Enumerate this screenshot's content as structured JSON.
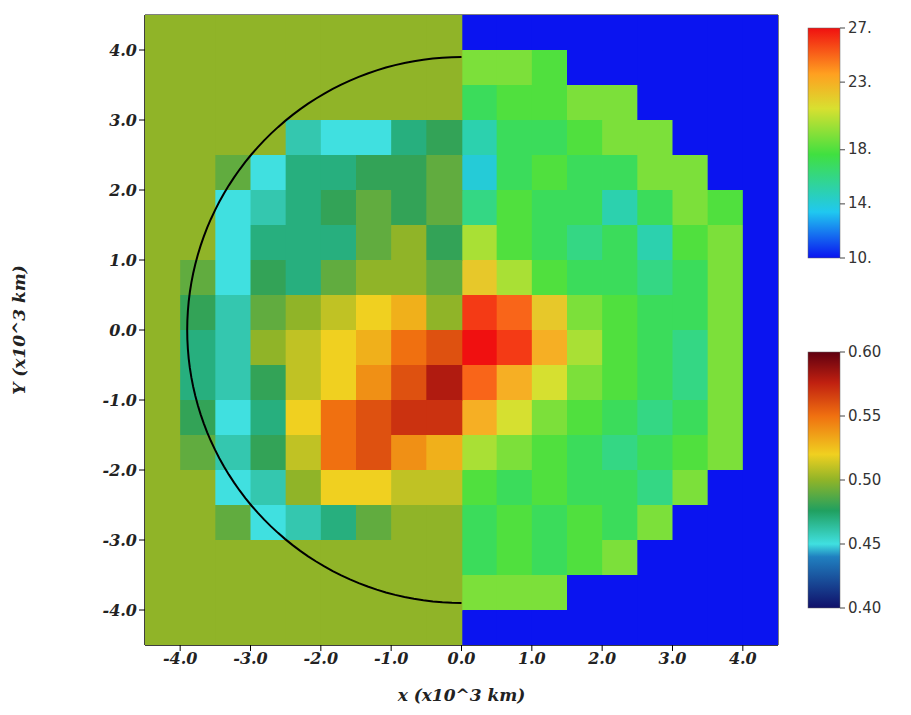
{
  "chart_data": {
    "type": "heatmap",
    "xlabel": "x (x10^3 km)",
    "ylabel": "Y (x10^3 km)",
    "xlim": [
      -4.5,
      4.5
    ],
    "ylim": [
      -4.5,
      4.5
    ],
    "xticks": [
      {
        "value": -4,
        "label": "-4.0"
      },
      {
        "value": -3,
        "label": "-3.0"
      },
      {
        "value": -2,
        "label": "-2.0"
      },
      {
        "value": -1,
        "label": "-1.0"
      },
      {
        "value": 0,
        "label": "0.0"
      },
      {
        "value": 1,
        "label": "1.0"
      },
      {
        "value": 2,
        "label": "2.0"
      },
      {
        "value": 3,
        "label": "3.0"
      },
      {
        "value": 4,
        "label": "4.0"
      }
    ],
    "yticks": [
      {
        "value": -4,
        "label": "-4.0"
      },
      {
        "value": -3,
        "label": "-3.0"
      },
      {
        "value": -2,
        "label": "-2.0"
      },
      {
        "value": -1,
        "label": "-1.0"
      },
      {
        "value": 0,
        "label": "0.0"
      },
      {
        "value": 1,
        "label": "1.0"
      },
      {
        "value": 2,
        "label": "2.0"
      },
      {
        "value": 3,
        "label": "3.0"
      },
      {
        "value": 4,
        "label": "4.0"
      }
    ],
    "heatmaps": [
      {
        "x": [
          0.25,
          0.75,
          1.25,
          1.75,
          2.25,
          2.75,
          3.25,
          3.75,
          4.25
        ],
        "y": [
          4.25,
          3.75,
          3.25,
          2.75,
          2.25,
          1.75,
          1.25,
          0.75,
          0.25,
          -0.25,
          -0.75,
          -1.25,
          -1.75,
          -2.25,
          -2.75,
          -3.25,
          -3.75,
          -4.25
        ],
        "values": [
          [
            10,
            10,
            10,
            10,
            10,
            10,
            10,
            10,
            10
          ],
          [
            19,
            19,
            18,
            10,
            10,
            10,
            10,
            10,
            10
          ],
          [
            17,
            18,
            18,
            19,
            19,
            10,
            10,
            10,
            10
          ],
          [
            15,
            17,
            17,
            18,
            19,
            19,
            10,
            10,
            10
          ],
          [
            14,
            17,
            18,
            17,
            17,
            19,
            19,
            10,
            10
          ],
          [
            16,
            18,
            17,
            17,
            15,
            17,
            19,
            18,
            10
          ],
          [
            20,
            18,
            17,
            16,
            17,
            15,
            18,
            19,
            10
          ],
          [
            22,
            20,
            18,
            17,
            17,
            16,
            17,
            19,
            10
          ],
          [
            26,
            25,
            22,
            19,
            18,
            17,
            17,
            19,
            10
          ],
          [
            27,
            26,
            23,
            20,
            18,
            17,
            16,
            19,
            10
          ],
          [
            25,
            23,
            21,
            19,
            18,
            17,
            16,
            19,
            10
          ],
          [
            23,
            21,
            19,
            18,
            17,
            16,
            17,
            19,
            10
          ],
          [
            20,
            19,
            18,
            17,
            16,
            17,
            18,
            19,
            10
          ],
          [
            18,
            17,
            18,
            17,
            17,
            16,
            19,
            10,
            10
          ],
          [
            17,
            18,
            17,
            18,
            17,
            19,
            10,
            10,
            10
          ],
          [
            17,
            18,
            17,
            18,
            19,
            10,
            10,
            10,
            10
          ],
          [
            19,
            19,
            19,
            10,
            10,
            10,
            10,
            10,
            10
          ],
          [
            10,
            10,
            10,
            10,
            10,
            10,
            10,
            10,
            10
          ]
        ],
        "colorbar": {
          "range": [
            10,
            27
          ],
          "ticks": [
            {
              "value": 27,
              "label": "27."
            },
            {
              "value": 23,
              "label": "23."
            },
            {
              "value": 18,
              "label": "18."
            },
            {
              "value": 14,
              "label": "14."
            },
            {
              "value": 10,
              "label": "10."
            }
          ]
        }
      },
      {
        "x": [
          -4.25,
          -3.75,
          -3.25,
          -2.75,
          -2.25,
          -1.75,
          -1.25,
          -0.75,
          -0.25
        ],
        "y": [
          4.25,
          3.75,
          3.25,
          2.75,
          2.25,
          1.75,
          1.25,
          0.75,
          0.25,
          -0.25,
          -0.75,
          -1.25,
          -1.75,
          -2.25,
          -2.75,
          -3.25,
          -3.75,
          -4.25
        ],
        "values": [
          [
            0.5,
            0.5,
            0.5,
            0.5,
            0.5,
            0.5,
            0.5,
            0.5,
            0.5
          ],
          [
            0.5,
            0.5,
            0.5,
            0.5,
            0.5,
            0.5,
            0.5,
            0.5,
            0.5
          ],
          [
            0.5,
            0.5,
            0.5,
            0.5,
            0.5,
            0.5,
            0.5,
            0.5,
            0.5
          ],
          [
            0.5,
            0.5,
            0.5,
            0.5,
            0.46,
            0.45,
            0.45,
            0.47,
            0.48
          ],
          [
            0.5,
            0.5,
            0.49,
            0.45,
            0.47,
            0.47,
            0.48,
            0.48,
            0.49
          ],
          [
            0.5,
            0.5,
            0.45,
            0.46,
            0.47,
            0.48,
            0.49,
            0.48,
            0.49
          ],
          [
            0.5,
            0.5,
            0.45,
            0.47,
            0.47,
            0.47,
            0.49,
            0.5,
            0.48
          ],
          [
            0.5,
            0.49,
            0.45,
            0.48,
            0.47,
            0.49,
            0.5,
            0.5,
            0.49
          ],
          [
            0.5,
            0.48,
            0.46,
            0.49,
            0.5,
            0.51,
            0.52,
            0.53,
            0.5
          ],
          [
            0.5,
            0.47,
            0.46,
            0.5,
            0.51,
            0.52,
            0.53,
            0.55,
            0.56
          ],
          [
            0.5,
            0.47,
            0.46,
            0.48,
            0.51,
            0.52,
            0.54,
            0.56,
            0.58
          ],
          [
            0.5,
            0.48,
            0.45,
            0.47,
            0.52,
            0.55,
            0.56,
            0.57,
            0.57
          ],
          [
            0.5,
            0.49,
            0.46,
            0.48,
            0.51,
            0.55,
            0.56,
            0.54,
            0.53
          ],
          [
            0.5,
            0.5,
            0.45,
            0.46,
            0.5,
            0.52,
            0.52,
            0.51,
            0.51
          ],
          [
            0.5,
            0.5,
            0.49,
            0.45,
            0.46,
            0.47,
            0.49,
            0.5,
            0.5
          ],
          [
            0.5,
            0.5,
            0.5,
            0.5,
            0.5,
            0.5,
            0.5,
            0.5,
            0.5
          ],
          [
            0.5,
            0.5,
            0.5,
            0.5,
            0.5,
            0.5,
            0.5,
            0.5,
            0.5
          ],
          [
            0.5,
            0.5,
            0.5,
            0.5,
            0.5,
            0.5,
            0.5,
            0.5,
            0.5
          ]
        ],
        "colorbar": {
          "range": [
            0.4,
            0.6
          ],
          "ticks": [
            {
              "value": 0.6,
              "label": "0.60"
            },
            {
              "value": 0.55,
              "label": "0.55"
            },
            {
              "value": 0.5,
              "label": "0.50"
            },
            {
              "value": 0.45,
              "label": "0.45"
            },
            {
              "value": 0.4,
              "label": "0.40"
            }
          ]
        }
      }
    ],
    "contour": {
      "radius": 3.9,
      "color": "#000000"
    }
  }
}
